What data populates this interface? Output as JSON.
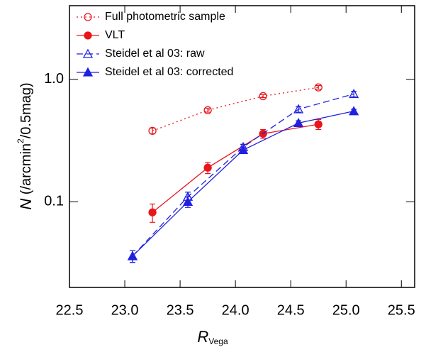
{
  "chart_data": {
    "type": "line",
    "x_label": [
      "R",
      "Vega"
    ],
    "y_label": [
      "N",
      " (/arcmin",
      "2",
      "/0.5mag)"
    ],
    "xlim": [
      22.5,
      25.62
    ],
    "ylim": [
      0.02,
      4
    ],
    "y_scale": "log",
    "xticks": [
      22.5,
      {
        "value": 23,
        "label": "23.0"
      },
      23.5,
      {
        "value": 24,
        "label": "24.0"
      },
      24.5,
      {
        "value": 25,
        "label": "25.0"
      },
      25.5
    ],
    "yticks": [
      0.1,
      {
        "value": 1,
        "label": "1.0"
      }
    ],
    "legend": "upper left",
    "series": [
      {
        "name": "Full photometric sample",
        "color": "#e8161b",
        "linestyle": "dotted",
        "marker": "circle",
        "filled": false,
        "x": [
          23.25,
          23.75,
          24.25,
          24.75
        ],
        "values": [
          0.38,
          0.56,
          0.73,
          0.86
        ],
        "errors": [
          0.02,
          0.02,
          0.02,
          0.03
        ]
      },
      {
        "name": "VLT",
        "color": "#e8161b",
        "linestyle": "solid",
        "marker": "circle",
        "filled": true,
        "x": [
          23.25,
          23.75,
          24.25,
          24.75
        ],
        "values": [
          0.082,
          0.19,
          0.36,
          0.43
        ],
        "errors": [
          0.014,
          0.02,
          0.03,
          0.04
        ]
      },
      {
        "name": "Steidel et al 03: raw",
        "color": "#2020e0",
        "linestyle": "dashed",
        "marker": "triangle",
        "filled": false,
        "x": [
          23.07,
          23.57,
          24.07,
          24.57,
          25.07
        ],
        "values": [
          0.036,
          0.11,
          0.28,
          0.57,
          0.76
        ],
        "errors": [
          0.004,
          0.01,
          0.015,
          0.03,
          0.04
        ]
      },
      {
        "name": "Steidel et al 03: corrected",
        "color": "#2020e0",
        "linestyle": "solid",
        "marker": "triangle",
        "filled": true,
        "x": [
          23.07,
          23.57,
          24.07,
          24.57,
          25.07
        ],
        "values": [
          0.036,
          0.1,
          0.265,
          0.44,
          0.55
        ],
        "errors": [
          0.004,
          0.01,
          0.015,
          0.02,
          0.02
        ]
      }
    ]
  }
}
